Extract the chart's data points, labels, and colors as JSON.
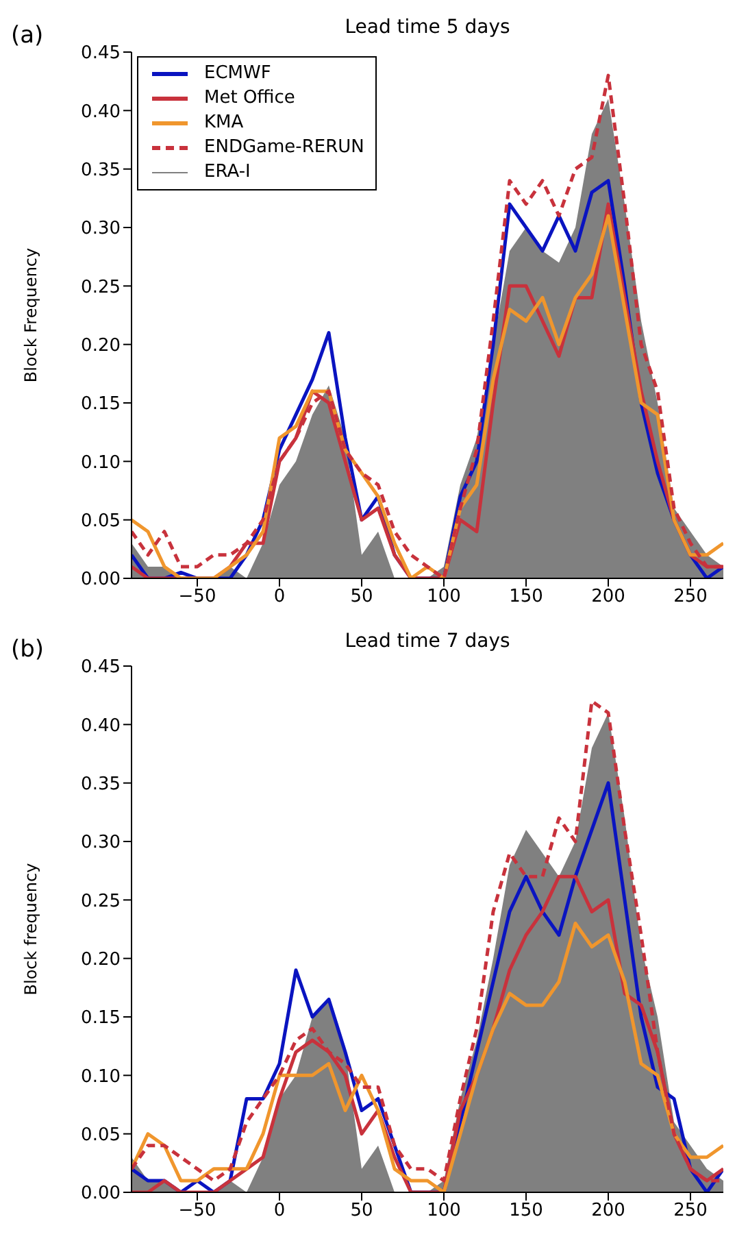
{
  "chart_data": [
    {
      "type": "line",
      "title": "Lead time 5 days",
      "ylabel": "Block Frequency",
      "annotations": [
        "(a)"
      ],
      "legend": "top left",
      "grid": false,
      "marker": "none",
      "line_style": "solid",
      "x": [
        -90,
        -80,
        -70,
        -60,
        -50,
        -40,
        -30,
        -20,
        -10,
        0,
        10,
        20,
        30,
        40,
        50,
        60,
        70,
        80,
        90,
        100,
        110,
        120,
        130,
        140,
        150,
        160,
        170,
        180,
        190,
        200,
        210,
        220,
        230,
        240,
        250,
        260,
        270
      ],
      "xlim": [
        -90,
        270
      ],
      "xticks": [
        -50,
        0,
        50,
        100,
        150,
        200,
        250
      ],
      "ylim": [
        0,
        0.45
      ],
      "yticks": [
        {
          "value": 0,
          "label": "0.00"
        },
        {
          "value": 0.05,
          "label": "0.05"
        },
        {
          "value": 0.1,
          "label": "0.10"
        },
        {
          "value": 0.15,
          "label": "0.15"
        },
        {
          "value": 0.2,
          "label": "0.20"
        },
        {
          "value": 0.25,
          "label": "0.25"
        },
        {
          "value": 0.3,
          "label": "0.30"
        },
        {
          "value": 0.35,
          "label": "0.35"
        },
        {
          "value": 0.4,
          "label": "0.40"
        },
        {
          "value": 0.45,
          "label": "0.45"
        }
      ],
      "series": [
        {
          "name": "ECMWF",
          "color": "#0a14c0",
          "values": [
            0.02,
            0,
            0,
            0.005,
            0,
            0,
            0,
            0.02,
            0.05,
            0.11,
            0.14,
            0.17,
            0.21,
            0.12,
            0.05,
            0.07,
            0.02,
            0,
            0,
            0,
            0.07,
            0.1,
            0.2,
            0.32,
            0.3,
            0.28,
            0.31,
            0.28,
            0.33,
            0.34,
            0.25,
            0.15,
            0.09,
            0.05,
            0.02,
            0,
            0.01
          ]
        },
        {
          "name": "Met Office",
          "color": "#c8323c",
          "values": [
            0.01,
            0,
            0,
            0,
            0,
            0,
            0.01,
            0.03,
            0.03,
            0.1,
            0.12,
            0.16,
            0.15,
            0.1,
            0.05,
            0.06,
            0.02,
            0,
            0,
            0,
            0.05,
            0.04,
            0.15,
            0.25,
            0.25,
            0.22,
            0.19,
            0.24,
            0.24,
            0.32,
            0.24,
            0.16,
            0.1,
            0.05,
            0.02,
            0.01,
            0.01
          ]
        },
        {
          "name": "KMA",
          "color": "#f0962d",
          "values": [
            0.05,
            0.04,
            0.01,
            0,
            0,
            0,
            0.01,
            0.02,
            0.04,
            0.12,
            0.13,
            0.16,
            0.16,
            0.11,
            0.09,
            0.07,
            0.03,
            0,
            0.01,
            0,
            0.06,
            0.08,
            0.17,
            0.23,
            0.22,
            0.24,
            0.2,
            0.24,
            0.26,
            0.31,
            0.23,
            0.15,
            0.14,
            0.05,
            0.02,
            0.02,
            0.03
          ]
        },
        {
          "name": "ENDGame-RERUN",
          "line_style": "dashed",
          "color": "#c8323c",
          "values": [
            0.04,
            0.02,
            0.04,
            0.01,
            0.01,
            0.02,
            0.02,
            0.03,
            0.05,
            0.1,
            0.12,
            0.15,
            0.16,
            0.11,
            0.09,
            0.08,
            0.04,
            0.02,
            0.01,
            0,
            0.06,
            0.11,
            0.22,
            0.34,
            0.32,
            0.34,
            0.31,
            0.35,
            0.36,
            0.43,
            0.32,
            0.2,
            0.16,
            0.06,
            0.03,
            0.01,
            0.01
          ]
        },
        {
          "name": "ERA-I",
          "type": "area",
          "color": "#808080",
          "values": [
            0.03,
            0.01,
            0.01,
            0,
            0,
            0,
            0.01,
            0,
            0.03,
            0.08,
            0.1,
            0.14,
            0.165,
            0.12,
            0.02,
            0.04,
            0,
            0,
            0,
            0.01,
            0.08,
            0.12,
            0.2,
            0.28,
            0.3,
            0.28,
            0.27,
            0.3,
            0.38,
            0.41,
            0.32,
            0.22,
            0.15,
            0.06,
            0.04,
            0.02,
            0.01
          ]
        }
      ]
    },
    {
      "type": "line",
      "title": "Lead time 7 days",
      "ylabel": "Block frequency",
      "annotations": [
        "(b)"
      ],
      "grid": false,
      "marker": "none",
      "line_style": "solid",
      "x": [
        -90,
        -80,
        -70,
        -60,
        -50,
        -40,
        -30,
        -20,
        -10,
        0,
        10,
        20,
        30,
        40,
        50,
        60,
        70,
        80,
        90,
        100,
        110,
        120,
        130,
        140,
        150,
        160,
        170,
        180,
        190,
        200,
        210,
        220,
        230,
        240,
        250,
        260,
        270
      ],
      "xlim": [
        -90,
        270
      ],
      "xticks": [
        -50,
        0,
        50,
        100,
        150,
        200,
        250
      ],
      "ylim": [
        0,
        0.45
      ],
      "yticks": [
        {
          "value": 0,
          "label": "0.00"
        },
        {
          "value": 0.05,
          "label": "0.05"
        },
        {
          "value": 0.1,
          "label": "0.10"
        },
        {
          "value": 0.15,
          "label": "0.15"
        },
        {
          "value": 0.2,
          "label": "0.20"
        },
        {
          "value": 0.25,
          "label": "0.25"
        },
        {
          "value": 0.3,
          "label": "0.30"
        },
        {
          "value": 0.35,
          "label": "0.35"
        },
        {
          "value": 0.4,
          "label": "0.40"
        },
        {
          "value": 0.45,
          "label": "0.45"
        }
      ],
      "series": [
        {
          "color": "#0a14c0",
          "values": [
            0.02,
            0.01,
            0.01,
            0,
            0.01,
            0,
            0.01,
            0.08,
            0.08,
            0.11,
            0.19,
            0.15,
            0.165,
            0.12,
            0.07,
            0.08,
            0.04,
            0,
            0,
            0,
            0.06,
            0.12,
            0.18,
            0.24,
            0.27,
            0.24,
            0.22,
            0.27,
            0.31,
            0.35,
            0.25,
            0.15,
            0.09,
            0.08,
            0.02,
            0,
            0.02
          ]
        },
        {
          "color": "#c8323c",
          "values": [
            0,
            0,
            0.01,
            0,
            0,
            0,
            0.01,
            0.02,
            0.03,
            0.08,
            0.12,
            0.13,
            0.12,
            0.1,
            0.05,
            0.07,
            0.03,
            0,
            0,
            0,
            0.07,
            0.1,
            0.14,
            0.19,
            0.22,
            0.24,
            0.27,
            0.27,
            0.24,
            0.25,
            0.17,
            0.16,
            0.12,
            0.05,
            0.02,
            0.01,
            0.02
          ]
        },
        {
          "color": "#f0962d",
          "values": [
            0.02,
            0.05,
            0.04,
            0.01,
            0.01,
            0.02,
            0.02,
            0.02,
            0.05,
            0.1,
            0.1,
            0.1,
            0.11,
            0.07,
            0.1,
            0.07,
            0.02,
            0.01,
            0.01,
            0,
            0.05,
            0.1,
            0.14,
            0.17,
            0.16,
            0.16,
            0.18,
            0.23,
            0.21,
            0.22,
            0.18,
            0.11,
            0.1,
            0.05,
            0.03,
            0.03,
            0.04
          ]
        },
        {
          "line_style": "dashed",
          "color": "#c8323c",
          "values": [
            0.02,
            0.04,
            0.04,
            0.03,
            0.02,
            0.01,
            0.02,
            0.06,
            0.08,
            0.1,
            0.13,
            0.14,
            0.12,
            0.11,
            0.09,
            0.09,
            0.04,
            0.02,
            0.02,
            0.01,
            0.08,
            0.14,
            0.24,
            0.29,
            0.27,
            0.27,
            0.32,
            0.3,
            0.42,
            0.41,
            0.31,
            0.22,
            0.12,
            0.05,
            0.02,
            0.01,
            0.01
          ]
        },
        {
          "type": "area",
          "color": "#808080",
          "values": [
            0.03,
            0.01,
            0.01,
            0,
            0,
            0,
            0.01,
            0,
            0.03,
            0.08,
            0.1,
            0.15,
            0.165,
            0.12,
            0.02,
            0.04,
            0,
            0,
            0,
            0.01,
            0.08,
            0.13,
            0.2,
            0.28,
            0.31,
            0.29,
            0.27,
            0.3,
            0.38,
            0.41,
            0.32,
            0.21,
            0.15,
            0.06,
            0.04,
            0.02,
            0.01
          ]
        }
      ]
    }
  ]
}
